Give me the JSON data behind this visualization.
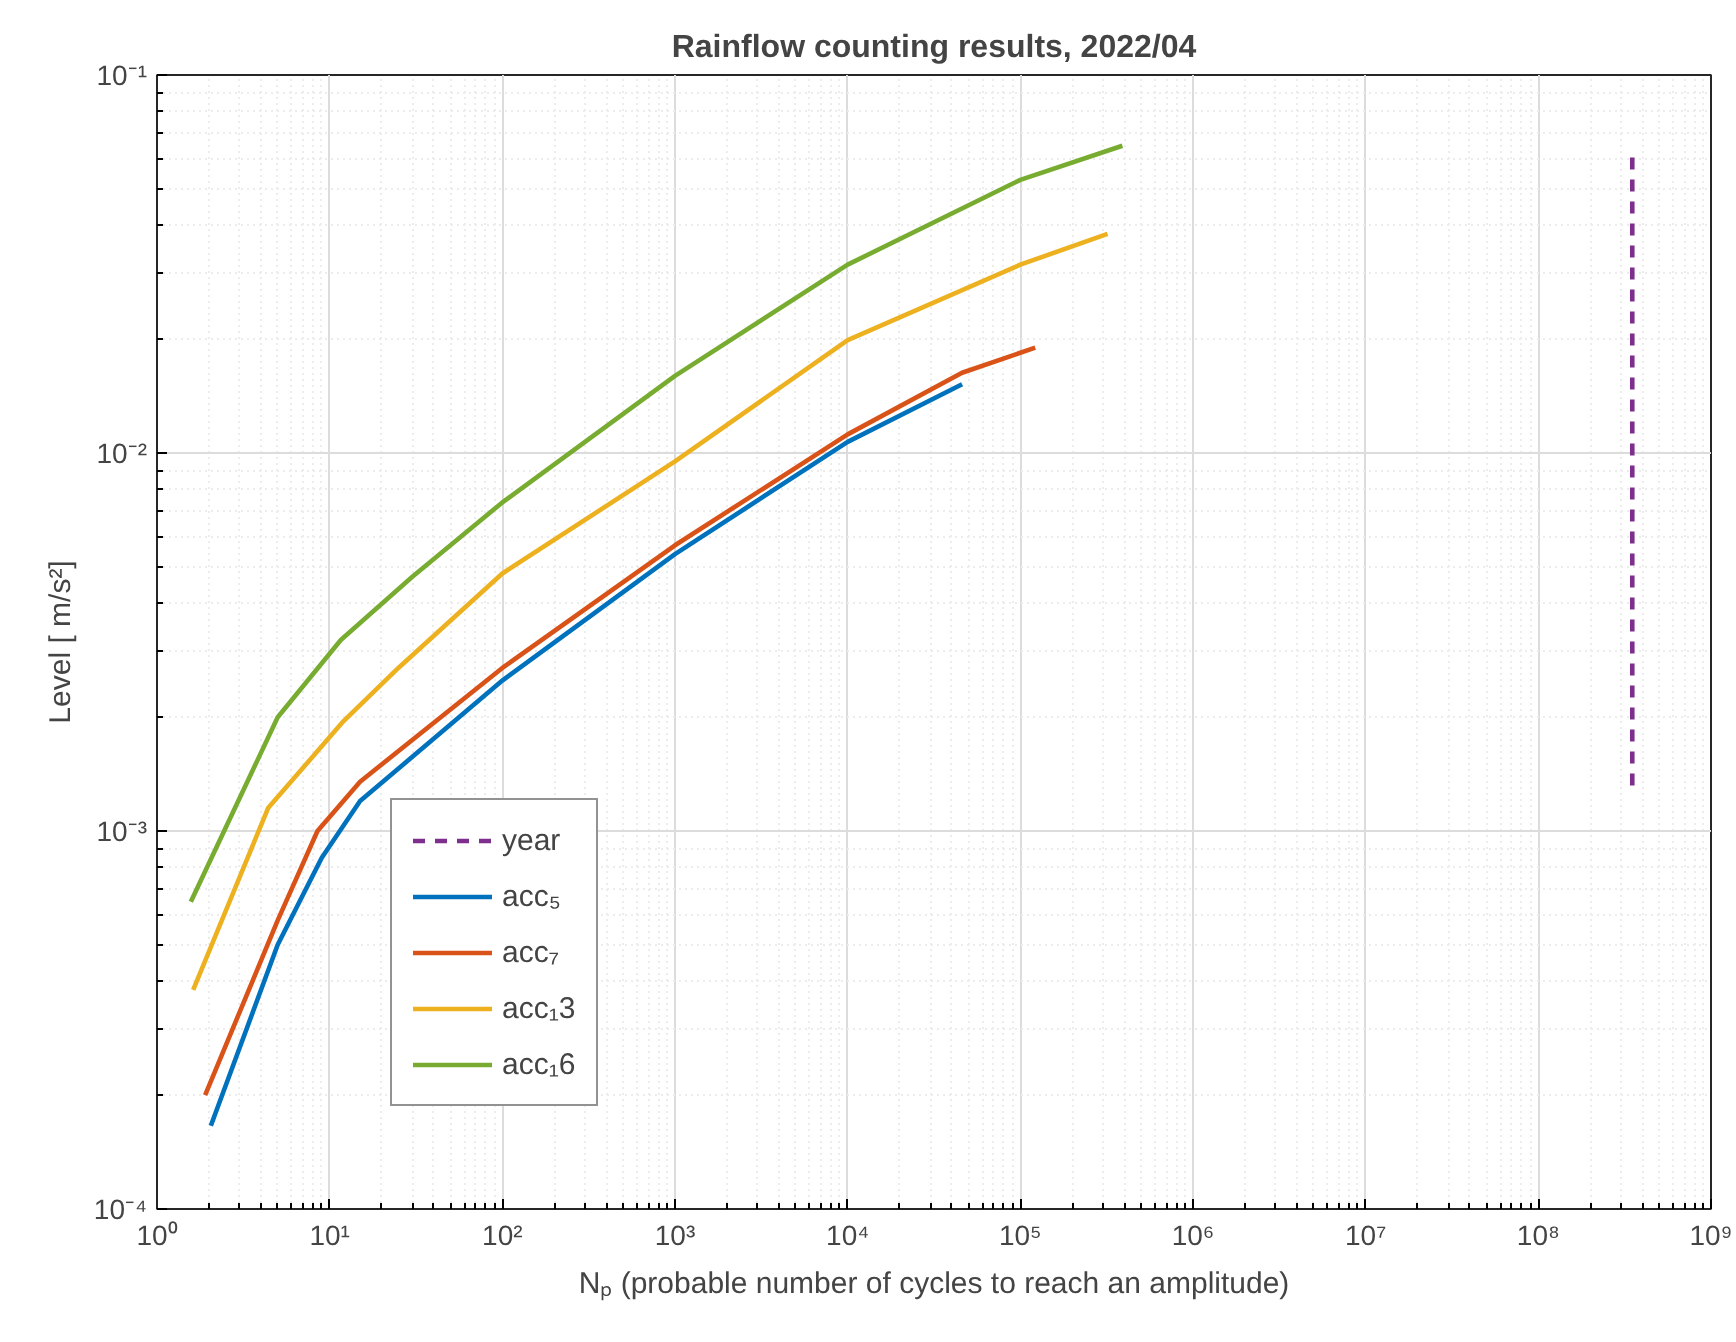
{
  "chart_data": {
    "type": "line",
    "title": "Rainflow counting results, 2022/04",
    "xlabel": "Nₚ (probable number of cycles to reach an amplitude)",
    "ylabel": "Level [ m/s²]",
    "log": "xy",
    "grid": true,
    "legend": "bottom left",
    "line_style": "solid",
    "marker": "none",
    "xlim": [
      1,
      1000000000
    ],
    "ylim": [
      0.0001,
      0.1
    ],
    "xticks": [
      {
        "value": 1,
        "label": "10⁰"
      },
      {
        "value": 10,
        "label": "10¹"
      },
      {
        "value": 100,
        "label": "10²"
      },
      {
        "value": 1000,
        "label": "10³"
      },
      {
        "value": 10000,
        "label": "10⁴"
      },
      {
        "value": 100000,
        "label": "10⁵"
      },
      {
        "value": 1000000,
        "label": "10⁶"
      },
      {
        "value": 10000000,
        "label": "10⁷"
      },
      {
        "value": 100000000,
        "label": "10⁸"
      },
      {
        "value": 1000000000,
        "label": "10⁹"
      }
    ],
    "yticks": [
      {
        "value": 0.0001,
        "label": "10⁻⁴"
      },
      {
        "value": 0.001,
        "label": "10⁻³"
      },
      {
        "value": 0.01,
        "label": "10⁻²"
      },
      {
        "value": 0.1,
        "label": "10⁻¹"
      }
    ],
    "series": [
      {
        "name": "year",
        "color": "#7e2f8e",
        "line_style": "dashed",
        "x": [
          350000000,
          350000000
        ],
        "values": [
          0.00132,
          0.061
        ]
      },
      {
        "name": "acc₅",
        "color": "#0072bd",
        "x": [
          2.05,
          5,
          9,
          15,
          100,
          1000,
          10000,
          46000
        ],
        "values": [
          0.000166,
          0.0005,
          0.00085,
          0.0012,
          0.0025,
          0.0054,
          0.0107,
          0.0152
        ]
      },
      {
        "name": "acc₇",
        "color": "#d95319",
        "x": [
          1.9,
          5,
          8.5,
          15,
          100,
          1000,
          10000,
          46000,
          122000
        ],
        "values": [
          0.0002,
          0.00058,
          0.001,
          0.00135,
          0.0027,
          0.0057,
          0.0112,
          0.0163,
          0.019
        ]
      },
      {
        "name": "acc₁3",
        "color": "#edb120",
        "x": [
          1.62,
          4.4,
          12,
          25,
          100,
          1000,
          10000,
          100000,
          320000
        ],
        "values": [
          0.00038,
          0.00115,
          0.00195,
          0.0027,
          0.0048,
          0.0095,
          0.0199,
          0.0315,
          0.038
        ]
      },
      {
        "name": "acc₁6",
        "color": "#77ac30",
        "x": [
          1.57,
          5,
          11.6,
          30,
          100,
          1000,
          10000,
          100000,
          390000
        ],
        "values": [
          0.00065,
          0.002,
          0.0032,
          0.0047,
          0.0074,
          0.016,
          0.0315,
          0.0528,
          0.065
        ]
      }
    ]
  }
}
